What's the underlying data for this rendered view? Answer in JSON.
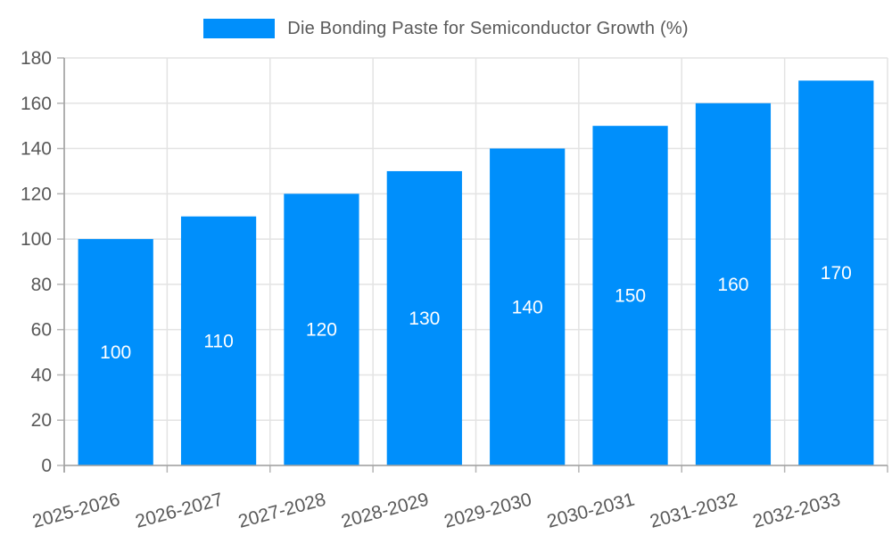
{
  "legend": {
    "label": "Die Bonding Paste for Semiconductor Growth (%)",
    "swatch_color": "#008FFB"
  },
  "chart_data": {
    "type": "bar",
    "title": "Die Bonding Paste for Semiconductor Growth (%)",
    "categories": [
      "2025-2026",
      "2026-2027",
      "2027-2028",
      "2028-2029",
      "2029-2030",
      "2030-2031",
      "2031-2032",
      "2032-2033"
    ],
    "values": [
      100,
      110,
      120,
      130,
      140,
      150,
      160,
      170
    ],
    "xlabel": "",
    "ylabel": "",
    "ylim": [
      0,
      180
    ],
    "ytick_step": 20,
    "grid": true,
    "legend_position": "top",
    "x_label_rotation": -15,
    "data_labels_shown": true,
    "colors": {
      "bar": "#008FFB",
      "grid": "#e3e3e3",
      "axis_line": "#a0a0a0",
      "tick": "#b5b5b5",
      "axis_text": "#595959",
      "data_label": "#ffffff"
    }
  }
}
